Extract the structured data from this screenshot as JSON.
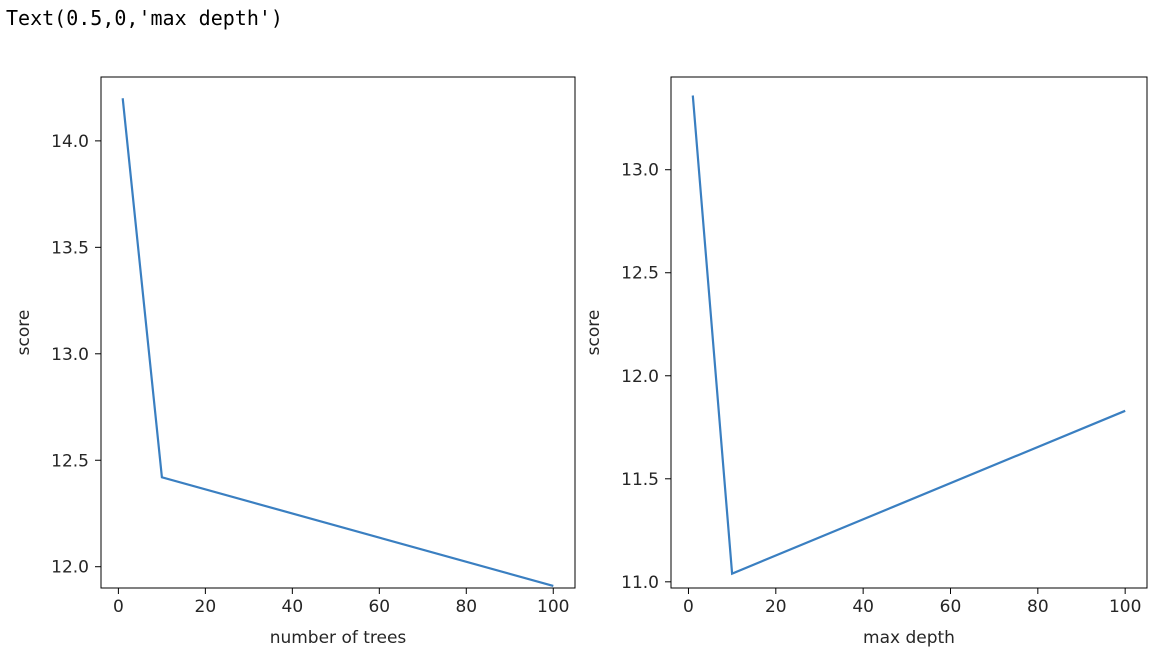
{
  "output_text": "Text(0.5,0,'max depth')",
  "chart_data": [
    {
      "type": "line",
      "title": "",
      "xlabel": "number of trees",
      "ylabel": "score",
      "xlim": [
        -4,
        105
      ],
      "ylim": [
        11.9,
        14.3
      ],
      "xticks": [
        0,
        20,
        40,
        60,
        80,
        100
      ],
      "yticks": [
        12.0,
        12.5,
        13.0,
        13.5,
        14.0
      ],
      "grid": false,
      "series": [
        {
          "x": [
            1,
            10,
            100
          ],
          "y": [
            14.2,
            12.42,
            11.91
          ],
          "color": "#3a7fc1"
        }
      ]
    },
    {
      "type": "line",
      "title": "",
      "xlabel": "max depth",
      "ylabel": "score",
      "xlim": [
        -4,
        105
      ],
      "ylim": [
        10.97,
        13.45
      ],
      "xticks": [
        0,
        20,
        40,
        60,
        80,
        100
      ],
      "yticks": [
        11.0,
        11.5,
        12.0,
        12.5,
        13.0
      ],
      "grid": false,
      "series": [
        {
          "x": [
            1,
            10,
            100
          ],
          "y": [
            13.36,
            11.04,
            11.83
          ],
          "color": "#3a7fc1"
        }
      ]
    }
  ]
}
